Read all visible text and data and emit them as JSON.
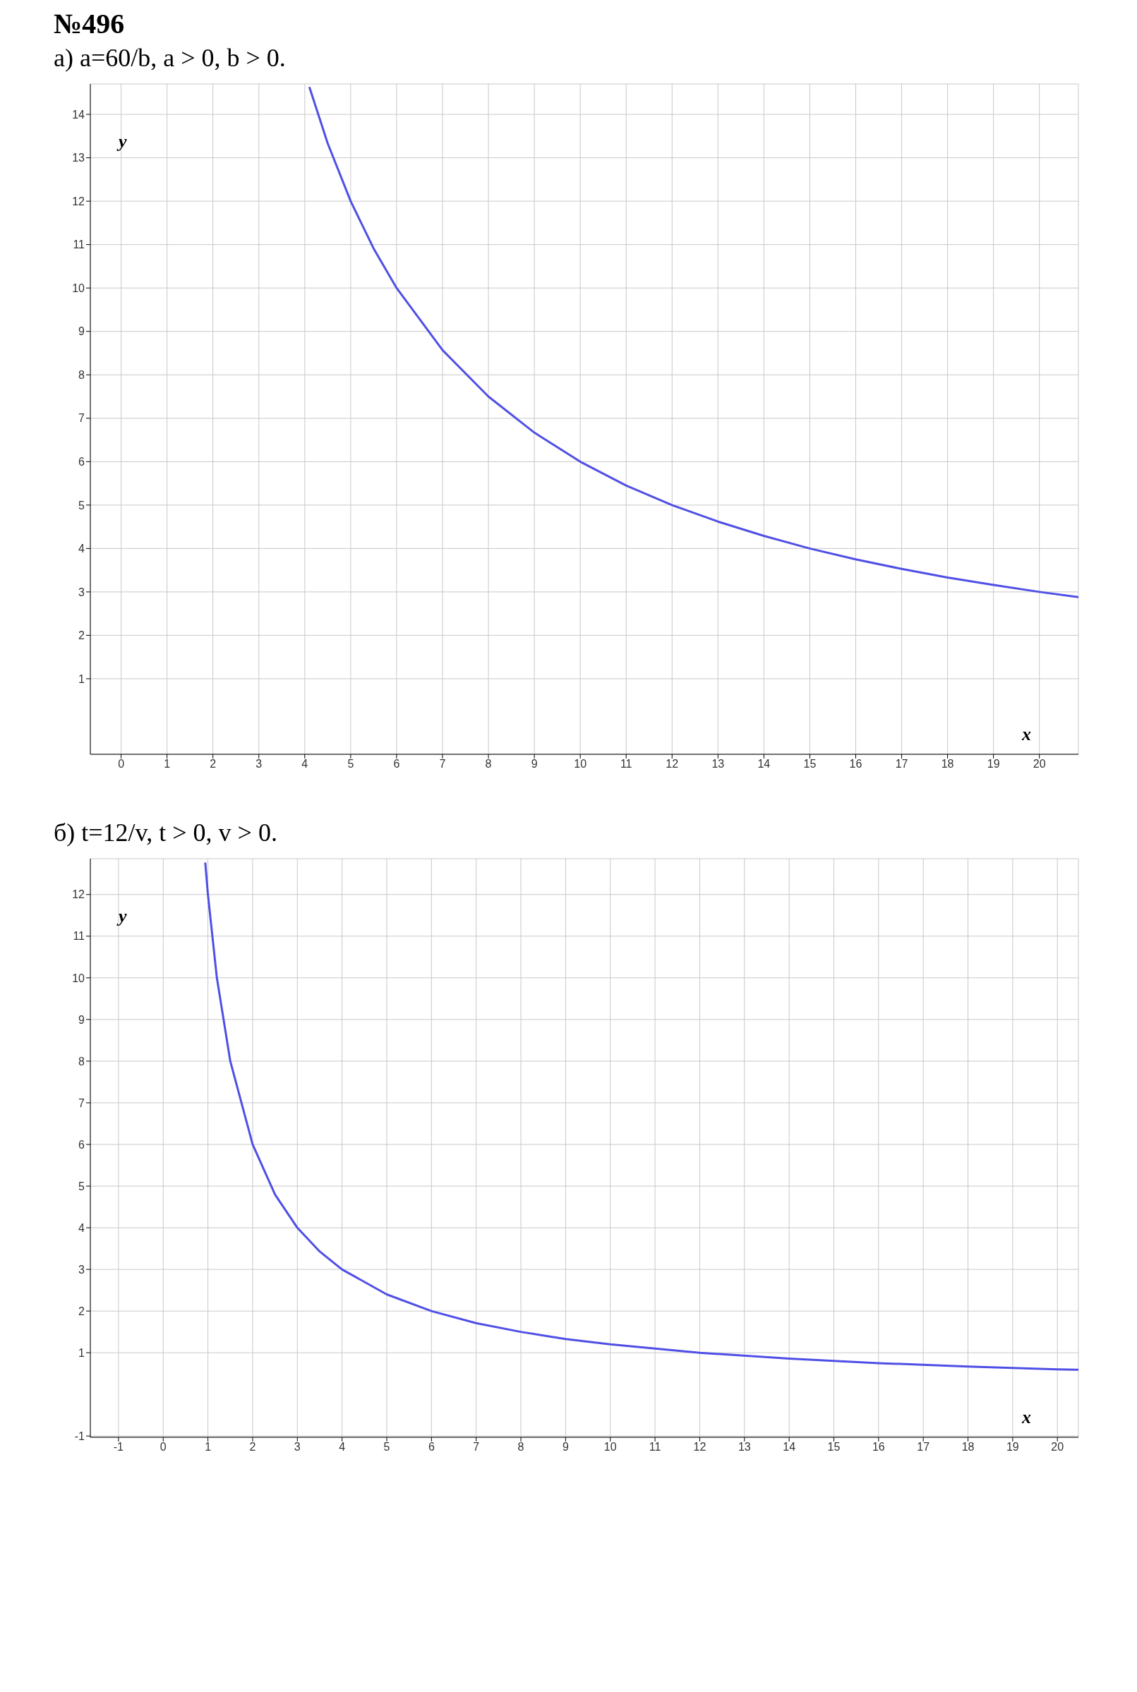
{
  "chart_data": [
    {
      "type": "line",
      "title": "№496",
      "subtitle": "а) a=60/b, a > 0, b > 0.",
      "xlabel": "x",
      "ylabel": "y",
      "xlim": [
        -0.67,
        20.85
      ],
      "ylim": [
        -0.74,
        14.7
      ],
      "xticks": [
        0,
        1,
        2,
        3,
        4,
        5,
        6,
        7,
        8,
        9,
        10,
        11,
        12,
        13,
        14,
        15,
        16,
        17,
        18,
        19,
        20
      ],
      "yticks": [
        1,
        2,
        3,
        4,
        5,
        6,
        7,
        8,
        9,
        10,
        11,
        12,
        13,
        14
      ],
      "grid": true,
      "marker": "none",
      "line_style": "solid",
      "series": [
        {
          "color": "#4f4fe6",
          "x": [
            4.1,
            4.5,
            5,
            5.5,
            6,
            7,
            8,
            9,
            10,
            11,
            12,
            13,
            14,
            15,
            16,
            17,
            18,
            19,
            20,
            20.85
          ],
          "values": [
            14.63,
            13.33,
            12,
            10.91,
            10,
            8.57,
            7.5,
            6.67,
            6,
            5.45,
            5,
            4.62,
            4.29,
            4,
            3.75,
            3.53,
            3.33,
            3.16,
            3,
            2.88
          ]
        }
      ]
    },
    {
      "type": "line",
      "subtitle": "б) t=12/v, t > 0, v > 0.",
      "xlabel": "x",
      "ylabel": "y",
      "xlim": [
        -1.63,
        20.47
      ],
      "ylim": [
        -1.03,
        12.86
      ],
      "xticks": [
        -1,
        0,
        1,
        2,
        3,
        4,
        5,
        6,
        7,
        8,
        9,
        10,
        11,
        12,
        13,
        14,
        15,
        16,
        17,
        18,
        19,
        20
      ],
      "yticks": [
        -1,
        1,
        2,
        3,
        4,
        5,
        6,
        7,
        8,
        9,
        10,
        11,
        12
      ],
      "grid": true,
      "marker": "none",
      "line_style": "solid",
      "series": [
        {
          "color": "#4f4fe6",
          "x": [
            0.94,
            1,
            1.2,
            1.5,
            2,
            2.5,
            3,
            3.5,
            4,
            5,
            6,
            7,
            8,
            9,
            10,
            12,
            14,
            16,
            18,
            20,
            20.47
          ],
          "values": [
            12.77,
            12,
            10,
            8,
            6,
            4.8,
            4,
            3.43,
            3,
            2.4,
            2,
            1.71,
            1.5,
            1.33,
            1.2,
            1,
            0.86,
            0.75,
            0.67,
            0.6,
            0.59
          ]
        }
      ]
    }
  ]
}
